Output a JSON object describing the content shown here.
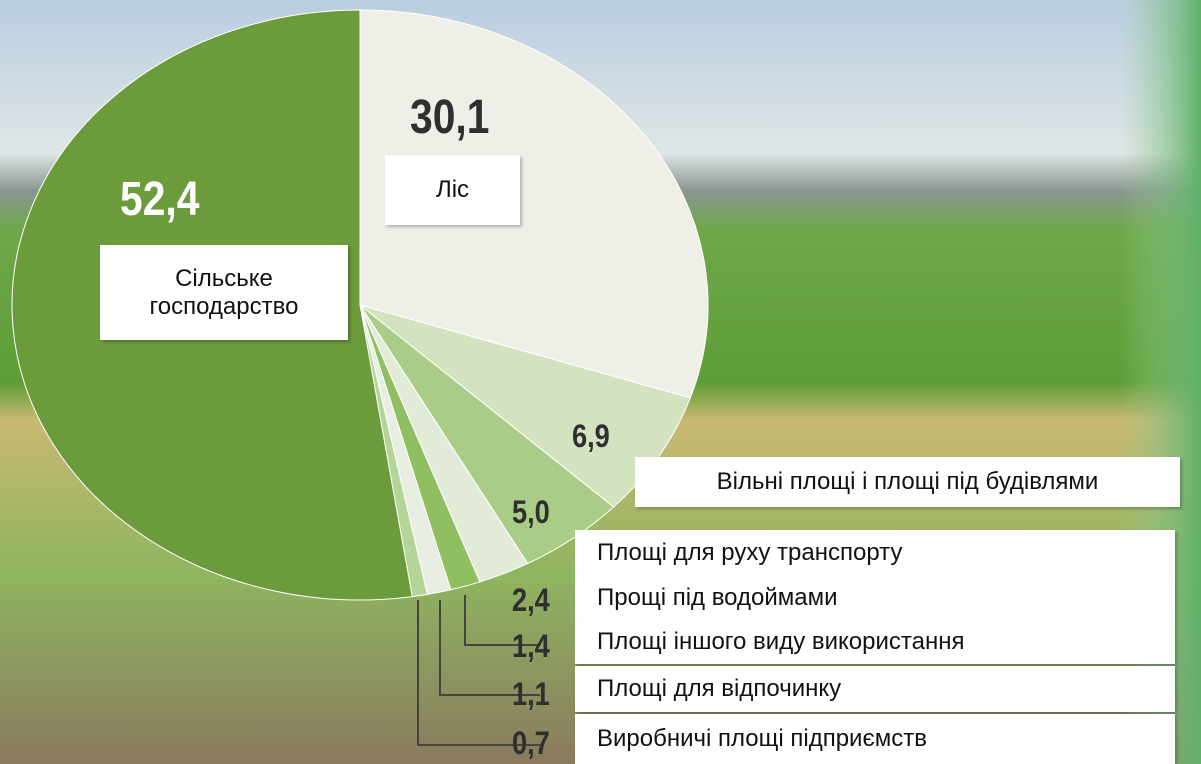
{
  "chart_data": {
    "type": "pie",
    "categories": [
      "Ліс",
      "Вільні площі і площі під будівлями",
      "Площі для руху транспорту",
      "Прощі під водоймами",
      "Площі іншого виду використання",
      "Площі для відпочинку",
      "Виробничі площі підприємств",
      "Сільське господарство"
    ],
    "values": [
      30.1,
      6.9,
      5.0,
      2.4,
      1.4,
      1.1,
      0.7,
      52.4
    ],
    "value_labels": [
      "30,1",
      "6,9",
      "5,0",
      "2,4",
      "1,4",
      "1,1",
      "0,7",
      "52,4"
    ],
    "colors": [
      "#efefe8",
      "#d3e3c0",
      "#a9cd86",
      "#e2ead8",
      "#8fbf60",
      "#e8eee2",
      "#b5d598",
      "#6b9b3a"
    ]
  }
}
